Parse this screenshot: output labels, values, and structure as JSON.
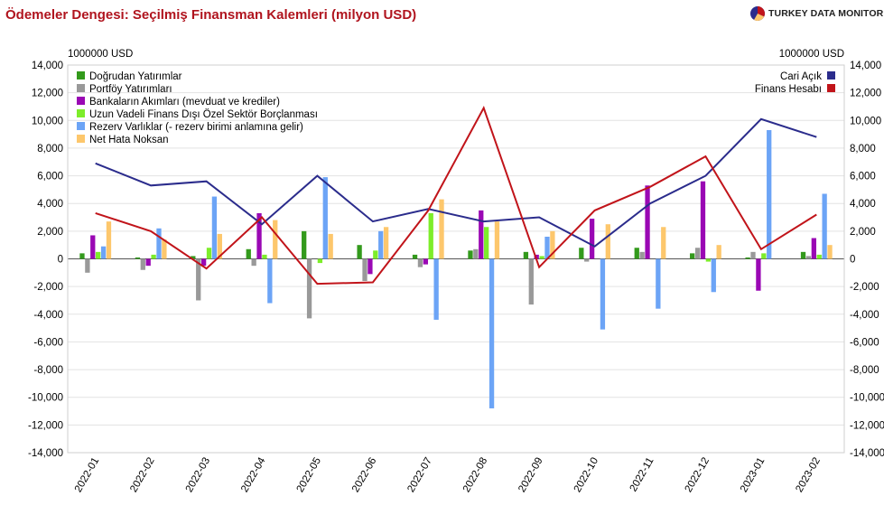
{
  "title": "Ödemeler Dengesi: Seçilmiş Finansman Kalemleri (milyon USD)",
  "brand": {
    "name": "TURKEY DATA MONITOR",
    "icon": "pie-logo-icon"
  },
  "chart_data": {
    "type": "bar",
    "combo": "bar+line",
    "categories": [
      "2022-01",
      "2022-02",
      "2022-03",
      "2022-04",
      "2022-05",
      "2022-06",
      "2022-07",
      "2022-08",
      "2022-09",
      "2022-10",
      "2022-11",
      "2022-12",
      "2023-01",
      "2023-02"
    ],
    "y_left": {
      "unit": "1000000 USD",
      "ylim": [
        -14000,
        14000
      ],
      "ticks": [
        "14,000",
        "12,000",
        "10,000",
        "8,000",
        "6,000",
        "4,000",
        "2,000",
        "0",
        "-2,000",
        "-4,000",
        "-6,000",
        "-8,000",
        "-10,000",
        "-12,000",
        "-14,000"
      ]
    },
    "y_right": {
      "unit": "1000000 USD",
      "ylim": [
        -14000,
        14000
      ],
      "ticks": [
        "14,000",
        "12,000",
        "10,000",
        "8,000",
        "6,000",
        "4,000",
        "2,000",
        "0",
        "-2,000",
        "-4,000",
        "-6,000",
        "-8,000",
        "-10,000",
        "-12,000",
        "-14,000"
      ]
    },
    "grid": "horizontal",
    "bar_series": [
      {
        "name": "Doğrudan Yatırımlar",
        "color": "#339a1c",
        "values": [
          400,
          100,
          200,
          700,
          2000,
          1000,
          300,
          600,
          500,
          800,
          800,
          400,
          100,
          500
        ]
      },
      {
        "name": "Portföy Yatırımları",
        "color": "#999999",
        "values": [
          -1000,
          -800,
          -3000,
          -500,
          -4300,
          -1600,
          -600,
          700,
          -3300,
          -200,
          500,
          800,
          500,
          200
        ]
      },
      {
        "name": "Bankaların Akımları (mevduat ve krediler)",
        "color": "#9a08b4",
        "values": [
          1700,
          -500,
          -500,
          3300,
          0,
          -1100,
          -400,
          3500,
          300,
          2900,
          5300,
          5600,
          -2300,
          1500
        ]
      },
      {
        "name": "Uzun Vadeli Finans Dışı Özel Sektör Borçlanması",
        "color": "#7ded2a",
        "values": [
          500,
          300,
          800,
          300,
          -300,
          600,
          3300,
          2300,
          200,
          0,
          0,
          -200,
          400,
          300
        ]
      },
      {
        "name": "Rezerv Varlıklar (- rezerv birimi anlamına gelir)",
        "color": "#6ca4f6",
        "values": [
          900,
          2200,
          4500,
          -3200,
          5900,
          2000,
          -4400,
          -10800,
          1600,
          -5100,
          -3600,
          -2400,
          9300,
          4700
        ]
      },
      {
        "name": "Net Hata Noksan",
        "color": "#fdc76c",
        "values": [
          2700,
          1400,
          1800,
          2800,
          1800,
          2300,
          4300,
          2700,
          2000,
          2500,
          2300,
          1000,
          0,
          1000
        ]
      }
    ],
    "line_series": [
      {
        "name": "Cari Açık",
        "color": "#2b2c8c",
        "values": [
          6900,
          5300,
          5600,
          2500,
          6000,
          2700,
          3600,
          2700,
          3000,
          900,
          4000,
          6000,
          10100,
          8800
        ]
      },
      {
        "name": "Finans Hesabı",
        "color": "#c1141a",
        "values": [
          3300,
          2000,
          -700,
          3000,
          -1800,
          -1700,
          3500,
          10900,
          -600,
          3500,
          5200,
          7400,
          700,
          3200
        ]
      }
    ],
    "legend_left_position": "top-left",
    "legend_right_position": "top-right"
  }
}
